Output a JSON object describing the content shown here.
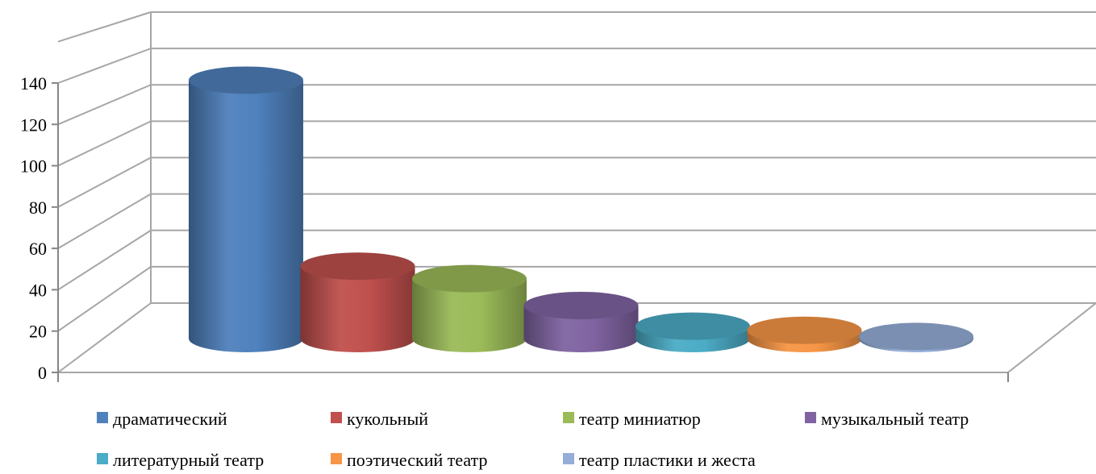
{
  "chart_data": {
    "type": "bar",
    "style": "3d-cylinder",
    "categories": [
      "драматический",
      "кукольный",
      "театр миниатюр",
      "музыкальный театр",
      "литературный театр",
      "поэтический театр",
      "театр пластики и жеста"
    ],
    "values": [
      125,
      35,
      29,
      16,
      6,
      4,
      1
    ],
    "colors": [
      "#4f81bd",
      "#c0504d",
      "#9bbb59",
      "#8064a2",
      "#4bacc6",
      "#f79646",
      "#95aed8"
    ],
    "y_ticks": [
      "0",
      "20",
      "40",
      "60",
      "80",
      "100",
      "120",
      "140"
    ],
    "ylim": [
      0,
      160
    ],
    "grid": true,
    "legend_position": "bottom"
  }
}
